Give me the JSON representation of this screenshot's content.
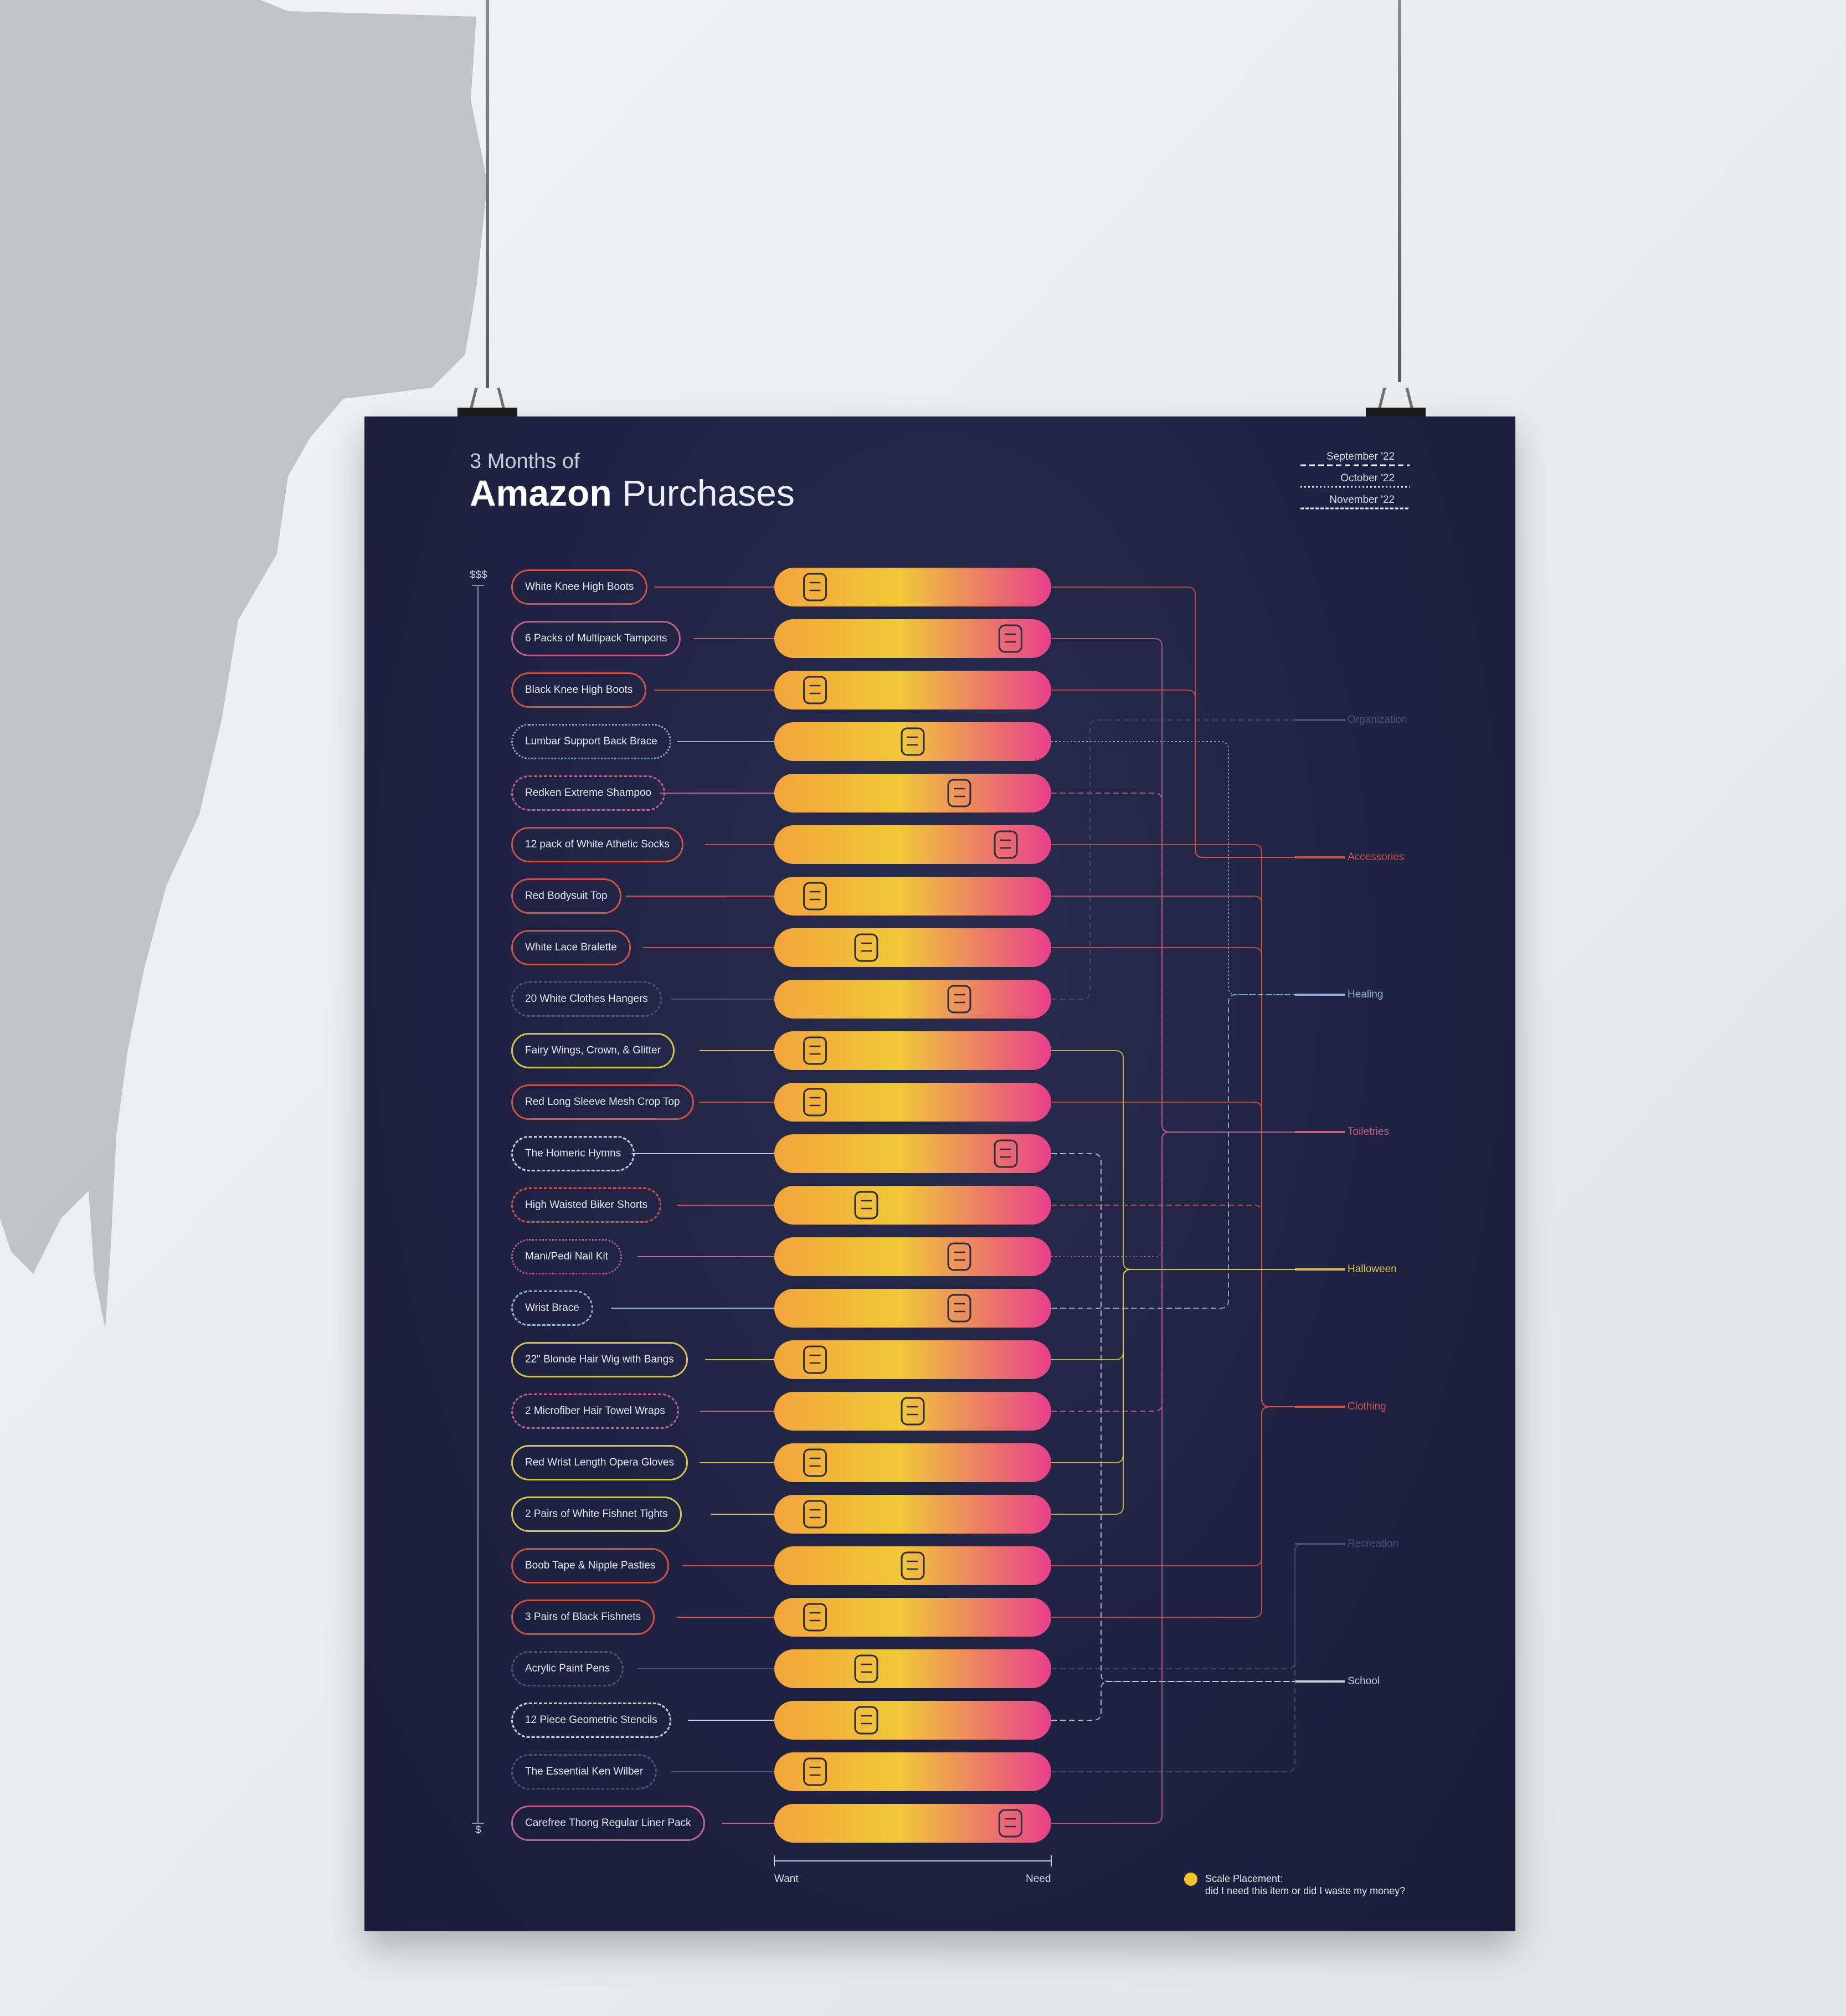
{
  "title": {
    "line1": "3 Months of",
    "brand": "Amazon",
    "rest": " Purchases"
  },
  "legend": [
    {
      "label": "September '22",
      "style": "dashed"
    },
    {
      "label": "October '22",
      "style": "dotted"
    },
    {
      "label": "November '22",
      "style": "dense-dashed"
    }
  ],
  "axis": {
    "top": "$$$",
    "bottom": "$"
  },
  "scale": {
    "left": "Want",
    "right": "Need"
  },
  "note": {
    "title": "Scale Placement:",
    "text": "did I need this item or did I waste my money?"
  },
  "categories": [
    {
      "name": "Organization",
      "color": "#4a5077"
    },
    {
      "name": "Accessories",
      "color": "#d1503f"
    },
    {
      "name": "Healing",
      "color": "#8fb0d2"
    },
    {
      "name": "Toiletries",
      "color": "#c35f86"
    },
    {
      "name": "Halloween",
      "color": "#d6c24a"
    },
    {
      "name": "Clothing",
      "color": "#d1503f"
    },
    {
      "name": "Recreation",
      "color": "#4a5077"
    },
    {
      "name": "School",
      "color": "#c9cbd6"
    }
  ],
  "items": [
    {
      "label": "White Knee High Boots",
      "category": "Accessories",
      "icon": "boot-icon",
      "need": 0.08,
      "style": "solid"
    },
    {
      "label": "6 Packs of Multipack Tampons",
      "category": "Toiletries",
      "icon": "tampon-icon",
      "need": 0.92,
      "style": "solid"
    },
    {
      "label": "Black Knee High Boots",
      "category": "Accessories",
      "icon": "boot-icon",
      "need": 0.08,
      "style": "solid"
    },
    {
      "label": "Lumbar Support Back Brace",
      "category": "Healing",
      "icon": "back-brace-icon",
      "need": 0.5,
      "style": "dotted"
    },
    {
      "label": "Redken Extreme Shampoo",
      "category": "Toiletries",
      "icon": "shampoo-bottle-icon",
      "need": 0.7,
      "style": "dashed"
    },
    {
      "label": "12 pack of White Athetic Socks",
      "category": "Clothing",
      "icon": "sock-icon",
      "need": 0.9,
      "style": "solid"
    },
    {
      "label": "Red Bodysuit Top",
      "category": "Clothing",
      "icon": "bodysuit-icon",
      "need": 0.08,
      "style": "solid"
    },
    {
      "label": "White Lace Bralette",
      "category": "Clothing",
      "icon": "bralette-icon",
      "need": 0.3,
      "style": "solid"
    },
    {
      "label": "20 White Clothes Hangers",
      "category": "Organization",
      "icon": "hanger-icon",
      "need": 0.7,
      "style": "dashed"
    },
    {
      "label": "Fairy Wings, Crown, & Glitter",
      "category": "Halloween",
      "icon": "wings-icon",
      "need": 0.08,
      "style": "solid"
    },
    {
      "label": "Red Long Sleeve Mesh Crop Top",
      "category": "Clothing",
      "icon": "long-sleeve-top-icon",
      "need": 0.08,
      "style": "solid"
    },
    {
      "label": "The Homeric Hymns",
      "category": "School",
      "icon": "book-icon",
      "need": 0.9,
      "style": "dashed"
    },
    {
      "label": "High Waisted Biker Shorts",
      "category": "Clothing",
      "icon": "shorts-icon",
      "need": 0.3,
      "style": "dashed"
    },
    {
      "label": "Mani/Pedi Nail Kit",
      "category": "Toiletries",
      "icon": "scissors-icon",
      "need": 0.7,
      "style": "dotted"
    },
    {
      "label": "Wrist Brace",
      "category": "Healing",
      "icon": "wrist-brace-icon",
      "need": 0.7,
      "style": "dashed"
    },
    {
      "label": "22\" Blonde Hair Wig with Bangs",
      "category": "Halloween",
      "icon": "wig-icon",
      "need": 0.08,
      "style": "solid"
    },
    {
      "label": "2 Microfiber Hair Towel Wraps",
      "category": "Toiletries",
      "icon": "towel-wrap-icon",
      "need": 0.5,
      "style": "dashed"
    },
    {
      "label": "Red Wrist Length Opera Gloves",
      "category": "Halloween",
      "icon": "glove-icon",
      "need": 0.08,
      "style": "solid"
    },
    {
      "label": "2 Pairs of White Fishnet Tights",
      "category": "Halloween",
      "icon": "tights-icon",
      "need": 0.08,
      "style": "solid"
    },
    {
      "label": "Boob Tape & Nipple Pasties",
      "category": "Clothing",
      "icon": "pasties-icon",
      "need": 0.5,
      "style": "solid"
    },
    {
      "label": "3 Pairs of Black Fishnets",
      "category": "Clothing",
      "icon": "tights-icon",
      "need": 0.08,
      "style": "solid"
    },
    {
      "label": "Acrylic Paint Pens",
      "category": "Recreation",
      "icon": "paint-pen-icon",
      "need": 0.3,
      "style": "dashed"
    },
    {
      "label": "12 Piece Geometric Stencils",
      "category": "School",
      "icon": "stencil-icon",
      "need": 0.3,
      "style": "dashed"
    },
    {
      "label": "The Essential Ken Wilber",
      "category": "Recreation",
      "icon": "open-book-icon",
      "need": 0.08,
      "style": "dashed"
    },
    {
      "label": "Carefree Thong Regular Liner Pack",
      "category": "Toiletries",
      "icon": "liner-icon",
      "need": 0.92,
      "style": "solid"
    }
  ]
}
